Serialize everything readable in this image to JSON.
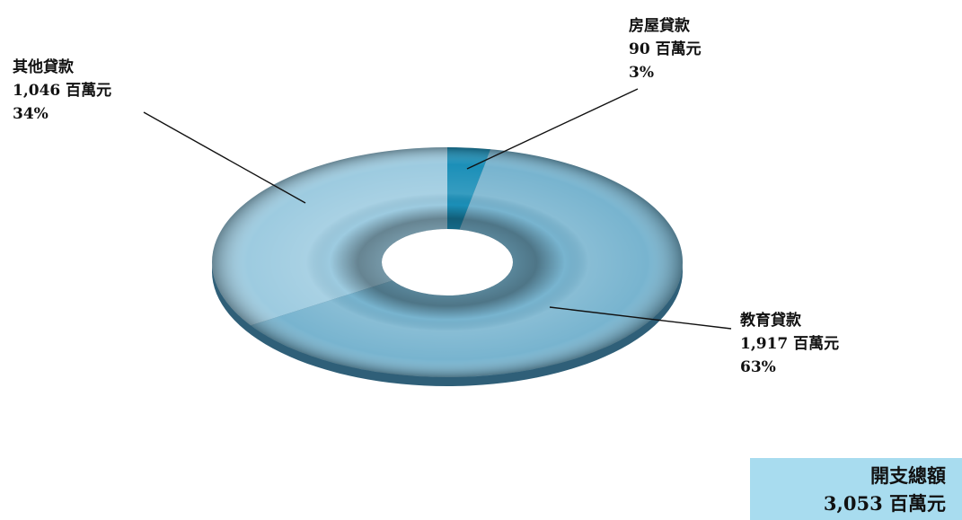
{
  "chart_data": {
    "type": "pie",
    "variant": "donut",
    "total_label": "開支總額",
    "total_value": "3,053 百萬元",
    "slices": [
      {
        "name": "房屋貸款",
        "amount": "90 百萬元",
        "percent_label": "3%",
        "value": 90,
        "color": "#1b8fb8"
      },
      {
        "name": "教育貸款",
        "amount": "1,917 百萬元",
        "percent_label": "63%",
        "value": 1917,
        "color": "#78b4cf"
      },
      {
        "name": "其他貸款",
        "amount": "1,046 百萬元",
        "percent_label": "34%",
        "value": 1046,
        "color": "#9dcbe0"
      }
    ]
  }
}
